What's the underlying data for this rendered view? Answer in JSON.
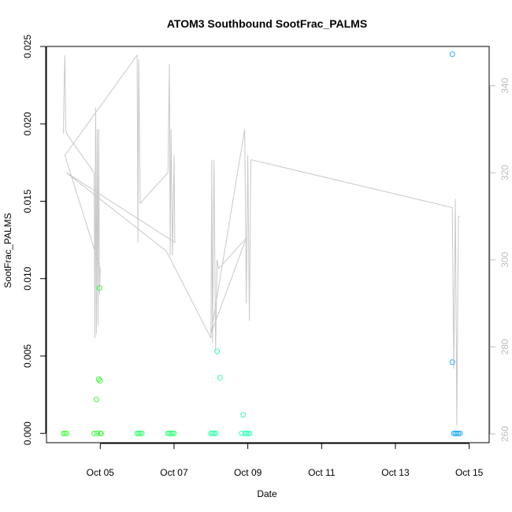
{
  "chart_data": {
    "type": "scatter",
    "title": "ATOM3 Southbound SootFrac_PALMS",
    "xlabel": "Date",
    "ylabel": "SootFrac_PALMS",
    "xlim": [
      "2016-10-03T13:00",
      "2016-10-15T13:00"
    ],
    "ylim": [
      -0.0006,
      0.025
    ],
    "x_ticks": [
      {
        "label": "Oct 05",
        "x": "2016-10-05"
      },
      {
        "label": "Oct 07",
        "x": "2016-10-07"
      },
      {
        "label": "Oct 09",
        "x": "2016-10-09"
      },
      {
        "label": "Oct 11",
        "x": "2016-10-11"
      },
      {
        "label": "Oct 13",
        "x": "2016-10-13"
      },
      {
        "label": "Oct 15",
        "x": "2016-10-15"
      }
    ],
    "y_ticks": [
      "0.000",
      "0.005",
      "0.010",
      "0.015",
      "0.020",
      "0.025"
    ],
    "y2_ticks": [
      "260",
      "280",
      "300",
      "320",
      "340"
    ],
    "y2lim": [
      258,
      349
    ],
    "grid": false,
    "series": [
      {
        "type": "points",
        "values": [
          {
            "x": "2016-10-04T00:00",
            "y": 0.0,
            "color": "#44ff44"
          },
          {
            "x": "2016-10-04T01:00",
            "y": 0.0,
            "color": "#44ff44"
          },
          {
            "x": "2016-10-04T02:00",
            "y": 0.0,
            "color": "#44ff44"
          },
          {
            "x": "2016-10-04T20:00",
            "y": 0.0,
            "color": "#33ff33"
          },
          {
            "x": "2016-10-04T21:30",
            "y": 0.0022,
            "color": "#33ff33"
          },
          {
            "x": "2016-10-04T22:00",
            "y": 0.0,
            "color": "#33ff33"
          },
          {
            "x": "2016-10-04T23:00",
            "y": 0.0035,
            "color": "#33ff33"
          },
          {
            "x": "2016-10-04T23:30",
            "y": 0.0094,
            "color": "#33ff33"
          },
          {
            "x": "2016-10-04T23:45",
            "y": 0.0034,
            "color": "#33ff33"
          },
          {
            "x": "2016-10-05T00:00",
            "y": 0.0,
            "color": "#33ff33"
          },
          {
            "x": "2016-10-05T00:30",
            "y": 0.0,
            "color": "#33ff33"
          },
          {
            "x": "2016-10-06T00:00",
            "y": 0.0,
            "color": "#33ff66"
          },
          {
            "x": "2016-10-06T01:00",
            "y": 0.0,
            "color": "#33ff66"
          },
          {
            "x": "2016-10-06T02:00",
            "y": 0.0,
            "color": "#33ff66"
          },
          {
            "x": "2016-10-06T03:00",
            "y": 0.0,
            "color": "#33ff66"
          },
          {
            "x": "2016-10-06T20:00",
            "y": 0.0,
            "color": "#33ff77"
          },
          {
            "x": "2016-10-06T21:00",
            "y": 0.0,
            "color": "#33ff77"
          },
          {
            "x": "2016-10-06T22:00",
            "y": 0.0,
            "color": "#33ff77"
          },
          {
            "x": "2016-10-06T23:00",
            "y": 0.0,
            "color": "#33ff77"
          },
          {
            "x": "2016-10-07T00:00",
            "y": 0.0,
            "color": "#33ff77"
          },
          {
            "x": "2016-10-08T00:00",
            "y": 0.0,
            "color": "#33ffaa"
          },
          {
            "x": "2016-10-08T01:00",
            "y": 0.0,
            "color": "#33ffaa"
          },
          {
            "x": "2016-10-08T02:00",
            "y": 0.0,
            "color": "#33ffaa"
          },
          {
            "x": "2016-10-08T03:00",
            "y": 0.0,
            "color": "#33ffaa"
          },
          {
            "x": "2016-10-08T04:00",
            "y": 0.0053,
            "color": "#33ffaa"
          },
          {
            "x": "2016-10-08T06:00",
            "y": 0.0036,
            "color": "#33ffaa"
          },
          {
            "x": "2016-10-08T20:00",
            "y": 0.0,
            "color": "#33ffbb"
          },
          {
            "x": "2016-10-08T21:00",
            "y": 0.0012,
            "color": "#33ffbb"
          },
          {
            "x": "2016-10-08T22:00",
            "y": 0.0,
            "color": "#33ffbb"
          },
          {
            "x": "2016-10-08T23:00",
            "y": 0.0,
            "color": "#33ffbb"
          },
          {
            "x": "2016-10-09T00:00",
            "y": 0.0,
            "color": "#33ffbb"
          },
          {
            "x": "2016-10-09T01:00",
            "y": 0.0,
            "color": "#33ffbb"
          },
          {
            "x": "2016-10-14T13:00",
            "y": 0.0245,
            "color": "#22aaff"
          },
          {
            "x": "2016-10-14T13:00",
            "y": 0.0046,
            "color": "#22aaff"
          },
          {
            "x": "2016-10-14T14:00",
            "y": 0.0,
            "color": "#22aaff"
          },
          {
            "x": "2016-10-14T15:00",
            "y": 0.0,
            "color": "#22aaff"
          },
          {
            "x": "2016-10-14T16:00",
            "y": 0.0,
            "color": "#22aaff"
          },
          {
            "x": "2016-10-14T17:00",
            "y": 0.0,
            "color": "#22aaff"
          },
          {
            "x": "2016-10-14T18:00",
            "y": 0.0,
            "color": "#22aaff"
          }
        ]
      },
      {
        "type": "line",
        "axis": "right",
        "color": "#c8c8c8",
        "values": [
          {
            "x": "2016-10-04T00:00",
            "y": 329
          },
          {
            "x": "2016-10-04T00:30",
            "y": 340
          },
          {
            "x": "2016-10-04T01:00",
            "y": 347
          },
          {
            "x": "2016-10-04T01:30",
            "y": 330
          },
          {
            "x": "2016-10-04T02:00",
            "y": 329
          },
          {
            "x": "2016-10-04T20:00",
            "y": 320
          },
          {
            "x": "2016-10-04T20:30",
            "y": 282
          },
          {
            "x": "2016-10-04T21:00",
            "y": 335
          },
          {
            "x": "2016-10-04T21:30",
            "y": 283
          },
          {
            "x": "2016-10-04T22:00",
            "y": 330
          },
          {
            "x": "2016-10-04T22:30",
            "y": 285
          },
          {
            "x": "2016-10-04T23:00",
            "y": 330
          },
          {
            "x": "2016-10-04T23:30",
            "y": 292
          },
          {
            "x": "2016-10-05T00:00",
            "y": 298
          },
          {
            "x": "2016-10-04T01:00",
            "y": 324
          },
          {
            "x": "2016-10-06T00:00",
            "y": 347
          },
          {
            "x": "2016-10-06T00:30",
            "y": 304
          },
          {
            "x": "2016-10-06T01:00",
            "y": 346
          },
          {
            "x": "2016-10-06T02:00",
            "y": 313
          },
          {
            "x": "2016-10-06T20:00",
            "y": 320
          },
          {
            "x": "2016-10-06T21:00",
            "y": 345
          },
          {
            "x": "2016-10-06T21:30",
            "y": 301
          },
          {
            "x": "2016-10-06T22:00",
            "y": 330
          },
          {
            "x": "2016-10-06T23:00",
            "y": 301
          },
          {
            "x": "2016-10-07T00:00",
            "y": 324
          },
          {
            "x": "2016-10-07T00:30",
            "y": 304
          },
          {
            "x": "2016-10-04T02:00",
            "y": 320
          },
          {
            "x": "2016-10-06T19:00",
            "y": 302
          },
          {
            "x": "2016-10-08T00:00",
            "y": 282
          },
          {
            "x": "2016-10-08T00:30",
            "y": 323
          },
          {
            "x": "2016-10-08T01:00",
            "y": 281
          },
          {
            "x": "2016-10-08T02:00",
            "y": 323
          },
          {
            "x": "2016-10-08T03:00",
            "y": 279
          },
          {
            "x": "2016-10-08T04:00",
            "y": 300
          },
          {
            "x": "2016-10-08T05:00",
            "y": 298
          },
          {
            "x": "2016-10-08T23:00",
            "y": 305
          },
          {
            "x": "2016-10-08T00:00",
            "y": 283
          },
          {
            "x": "2016-10-08T22:00",
            "y": 330
          },
          {
            "x": "2016-10-08T23:00",
            "y": 290
          },
          {
            "x": "2016-10-09T00:00",
            "y": 324
          },
          {
            "x": "2016-10-09T01:00",
            "y": 286
          },
          {
            "x": "2016-10-09T02:00",
            "y": 323
          },
          {
            "x": "2016-10-14T13:00",
            "y": 312
          },
          {
            "x": "2016-10-14T14:00",
            "y": 275
          },
          {
            "x": "2016-10-14T15:00",
            "y": 314
          },
          {
            "x": "2016-10-14T16:00",
            "y": 262
          },
          {
            "x": "2016-10-14T17:00",
            "y": 310
          },
          {
            "x": "2016-10-14T18:00",
            "y": 310
          }
        ]
      }
    ]
  }
}
